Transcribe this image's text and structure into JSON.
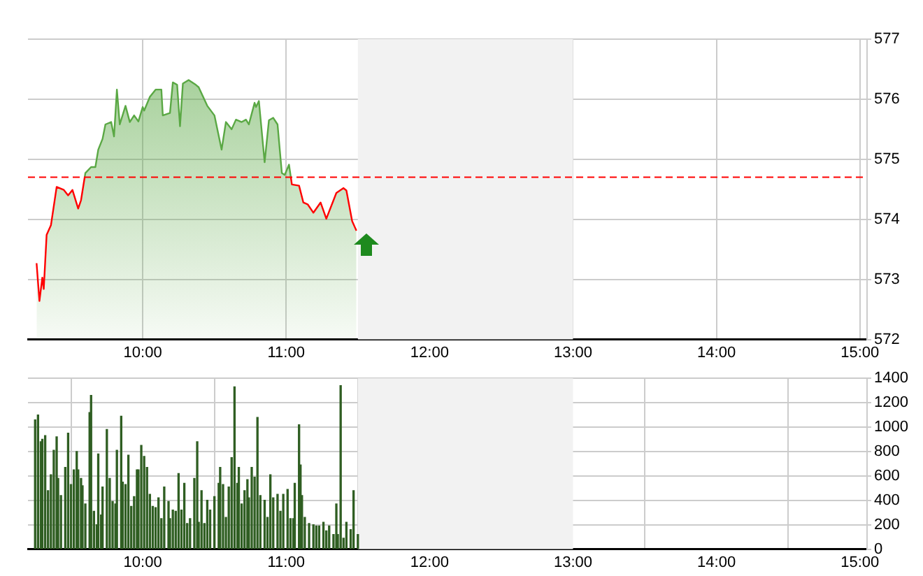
{
  "chart_data": [
    {
      "type": "area",
      "x": [
        9.26,
        9.28,
        9.3,
        9.31,
        9.33,
        9.36,
        9.4,
        9.45,
        9.48,
        9.51,
        9.55,
        9.57,
        9.6,
        9.64,
        9.67,
        9.69,
        9.72,
        9.74,
        9.78,
        9.8,
        9.82,
        9.84,
        9.88,
        9.91,
        9.94,
        9.97,
        10.0,
        10.01,
        10.05,
        10.09,
        10.13,
        10.14,
        10.19,
        10.21,
        10.24,
        10.26,
        10.28,
        10.32,
        10.37,
        10.39,
        10.45,
        10.5,
        10.55,
        10.58,
        10.62,
        10.65,
        10.69,
        10.72,
        10.74,
        10.78,
        10.79,
        10.81,
        10.85,
        10.88,
        10.91,
        10.94,
        10.97,
        10.99,
        11.02,
        11.04,
        11.09,
        11.12,
        11.15,
        11.19,
        11.24,
        11.28,
        11.35,
        11.4,
        11.42,
        11.46,
        11.49
      ],
      "series": [
        {
          "color": "#5aa844",
          "values": [
            573.27,
            572.64,
            573.03,
            572.84,
            573.74,
            573.9,
            574.54,
            574.49,
            574.4,
            574.49,
            574.18,
            574.32,
            574.77,
            574.87,
            574.87,
            575.16,
            575.34,
            575.58,
            575.62,
            575.38,
            576.16,
            575.58,
            575.89,
            575.62,
            575.73,
            575.63,
            575.87,
            575.81,
            576.04,
            576.16,
            576.16,
            575.73,
            575.77,
            576.28,
            576.24,
            575.55,
            576.26,
            576.32,
            576.24,
            576.2,
            575.89,
            575.73,
            575.16,
            575.62,
            575.5,
            575.66,
            575.62,
            575.66,
            575.58,
            575.94,
            575.87,
            575.97,
            574.95,
            575.65,
            575.69,
            575.58,
            574.77,
            574.74,
            574.91,
            574.58,
            574.56,
            574.28,
            574.25,
            574.11,
            574.28,
            574.01,
            574.44,
            574.52,
            574.48,
            573.97,
            573.81
          ]
        }
      ],
      "xlim": [
        9.2,
        15.05
      ],
      "xticks": [
        {
          "value": 10,
          "label": "10:00"
        },
        {
          "value": 11,
          "label": "11:00"
        },
        {
          "value": 12,
          "label": "12:00"
        },
        {
          "value": 13,
          "label": "13:00"
        },
        {
          "value": 14,
          "label": "14:00"
        },
        {
          "value": 15,
          "label": "15:00"
        }
      ],
      "ylim": [
        572,
        577
      ],
      "yticks": [
        572,
        573,
        574,
        575,
        576,
        577
      ],
      "grid": true,
      "ref_lines": [
        {
          "axis": "y",
          "value": 574.7,
          "color": "#ff0000",
          "line_style": "dashed"
        }
      ],
      "bands": [
        {
          "axis": "x",
          "from": 11.5,
          "to": 13,
          "color": "#f2f2f2"
        }
      ]
    },
    {
      "type": "bar",
      "x": [
        9.25,
        9.27,
        9.29,
        9.3,
        9.32,
        9.34,
        9.36,
        9.38,
        9.4,
        9.41,
        9.43,
        9.46,
        9.48,
        9.5,
        9.52,
        9.54,
        9.55,
        9.57,
        9.58,
        9.6,
        9.63,
        9.64,
        9.66,
        9.68,
        9.69,
        9.71,
        9.72,
        9.75,
        9.77,
        9.79,
        9.81,
        9.82,
        9.85,
        9.86,
        9.88,
        9.9,
        9.92,
        9.94,
        9.96,
        9.97,
        9.99,
        10.01,
        10.03,
        10.05,
        10.07,
        10.09,
        10.11,
        10.13,
        10.15,
        10.18,
        10.19,
        10.21,
        10.23,
        10.25,
        10.27,
        10.29,
        10.31,
        10.33,
        10.36,
        10.38,
        10.39,
        10.41,
        10.43,
        10.45,
        10.47,
        10.5,
        10.53,
        10.54,
        10.56,
        10.58,
        10.6,
        10.62,
        10.64,
        10.66,
        10.67,
        10.69,
        10.71,
        10.73,
        10.74,
        10.76,
        10.78,
        10.8,
        10.82,
        10.85,
        10.87,
        10.89,
        10.91,
        10.94,
        10.96,
        10.98,
        11.01,
        11.03,
        11.05,
        11.06,
        11.09,
        11.1,
        11.11,
        11.13,
        11.16,
        11.19,
        11.21,
        11.23,
        11.26,
        11.28,
        11.3,
        11.33,
        11.35,
        11.36,
        11.38,
        11.4,
        11.42,
        11.45,
        11.47,
        11.5
      ],
      "series": [
        {
          "color": "#2f5e22",
          "values": [
            1060,
            1100,
            880,
            900,
            930,
            480,
            610,
            810,
            920,
            580,
            440,
            670,
            950,
            530,
            650,
            800,
            650,
            580,
            520,
            370,
            1120,
            1260,
            310,
            200,
            780,
            280,
            510,
            980,
            580,
            390,
            370,
            810,
            1090,
            550,
            530,
            770,
            350,
            430,
            650,
            650,
            850,
            760,
            670,
            450,
            350,
            340,
            420,
            250,
            510,
            390,
            250,
            320,
            310,
            620,
            320,
            540,
            210,
            250,
            580,
            880,
            220,
            480,
            210,
            400,
            320,
            430,
            540,
            670,
            530,
            260,
            510,
            750,
            1330,
            540,
            670,
            370,
            480,
            570,
            420,
            670,
            590,
            1080,
            440,
            400,
            260,
            610,
            420,
            450,
            310,
            450,
            490,
            250,
            250,
            540,
            1020,
            690,
            440,
            260,
            210,
            200,
            190,
            190,
            220,
            150,
            190,
            120,
            370,
            120,
            1340,
            90,
            220,
            160,
            480,
            120
          ]
        }
      ],
      "xlim": [
        9.2,
        15.05
      ],
      "xticks": [
        {
          "value": 10,
          "label": "10:00"
        },
        {
          "value": 11,
          "label": "11:00"
        },
        {
          "value": 12,
          "label": "12:00"
        },
        {
          "value": 13,
          "label": "13:00"
        },
        {
          "value": 14,
          "label": "14:00"
        },
        {
          "value": 15,
          "label": "15:00"
        }
      ],
      "ylim": [
        0,
        1400
      ],
      "yticks": [
        0,
        200,
        400,
        600,
        800,
        1000,
        1200,
        1400
      ],
      "grid": true,
      "bands": [
        {
          "axis": "x",
          "from": 11.5,
          "to": 13,
          "color": "#f2f2f2"
        }
      ]
    }
  ]
}
